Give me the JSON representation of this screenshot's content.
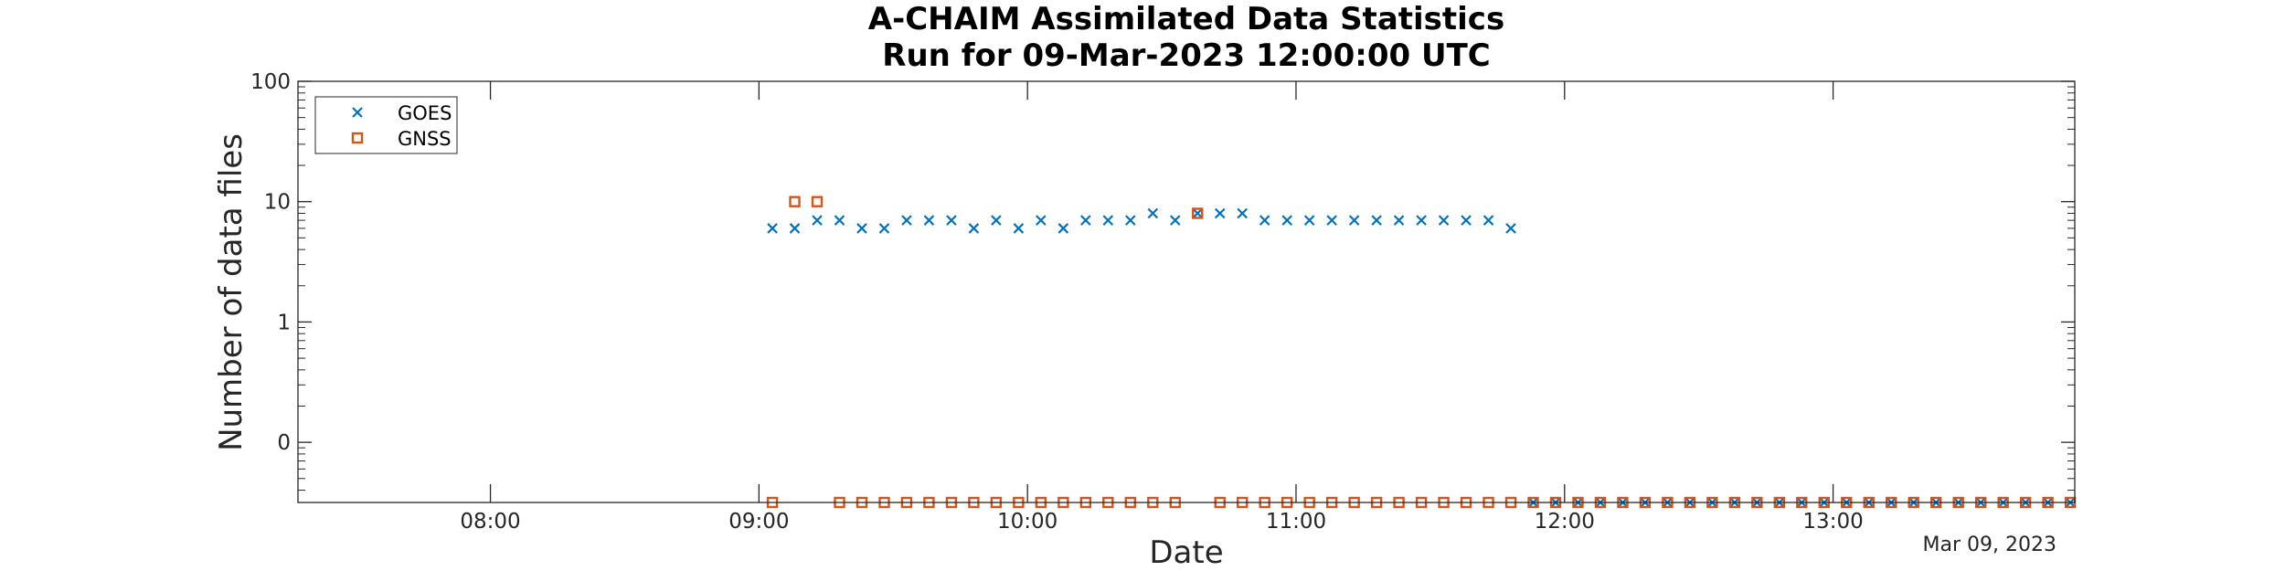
{
  "chart_data": {
    "type": "scatter",
    "title_lines": [
      "A-CHAIM Assimilated Data Statistics",
      "Run for 09-Mar-2023 12:00:00 UTC"
    ],
    "xlabel": "Date",
    "ylabel": "Number of data files",
    "x_tick_labels": [
      "08:00",
      "09:00",
      "10:00",
      "11:00",
      "12:00",
      "13:00"
    ],
    "x_tick_hours": [
      8,
      9,
      10,
      11,
      12,
      13
    ],
    "x_range_hours": [
      7.2833,
      13.9
    ],
    "y_scale": "log",
    "y_tick_labels": [
      "0",
      "1",
      "10",
      "100"
    ],
    "y_tick_values": [
      0.1,
      1,
      10,
      100
    ],
    "y_range": [
      0.03162,
      100
    ],
    "date_annotation": "Mar 09, 2023",
    "legend_position": "top-left",
    "grid": false,
    "series": [
      {
        "name": "GOES",
        "marker": "x",
        "color": "#0072BD",
        "x_hours": [
          9.05,
          9.1333,
          9.2167,
          9.3,
          9.3833,
          9.4667,
          9.55,
          9.6333,
          9.7167,
          9.8,
          9.8833,
          9.9667,
          10.05,
          10.1333,
          10.2167,
          10.3,
          10.3833,
          10.4667,
          10.55,
          10.6333,
          10.7167,
          10.8,
          10.8833,
          10.9667,
          11.05,
          11.1333,
          11.2167,
          11.3,
          11.3833,
          11.4667,
          11.55,
          11.6333,
          11.7167,
          11.8,
          11.8833,
          11.9667,
          12.05,
          12.1333,
          12.2167,
          12.3,
          12.3833,
          12.4667,
          12.55,
          12.6333,
          12.7167,
          12.8,
          12.8833,
          12.9667,
          13.05,
          13.1333,
          13.2167,
          13.3,
          13.3833,
          13.4667,
          13.55,
          13.6333,
          13.7167,
          13.8,
          13.8833
        ],
        "values": [
          6,
          6,
          7,
          7,
          6,
          6,
          7,
          7,
          7,
          6,
          7,
          6,
          7,
          6,
          7,
          7,
          7,
          8,
          7,
          8,
          8,
          8,
          7,
          7,
          7,
          7,
          7,
          7,
          7,
          7,
          7,
          7,
          7,
          6,
          0,
          0,
          0,
          0,
          0,
          0,
          0,
          0,
          0,
          0,
          0,
          0,
          0,
          0,
          0,
          0,
          0,
          0,
          0,
          0,
          0,
          0,
          0,
          0,
          0
        ]
      },
      {
        "name": "GNSS",
        "marker": "square",
        "color": "#D95319",
        "x_hours": [
          9.05,
          9.1333,
          9.2167,
          9.3,
          9.3833,
          9.4667,
          9.55,
          9.6333,
          9.7167,
          9.8,
          9.8833,
          9.9667,
          10.05,
          10.1333,
          10.2167,
          10.3,
          10.3833,
          10.4667,
          10.55,
          10.6333,
          10.7167,
          10.8,
          10.8833,
          10.9667,
          11.05,
          11.1333,
          11.2167,
          11.3,
          11.3833,
          11.4667,
          11.55,
          11.6333,
          11.7167,
          11.8,
          11.8833,
          11.9667,
          12.05,
          12.1333,
          12.2167,
          12.3,
          12.3833,
          12.4667,
          12.55,
          12.6333,
          12.7167,
          12.8,
          12.8833,
          12.9667,
          13.05,
          13.1333,
          13.2167,
          13.3,
          13.3833,
          13.4667,
          13.55,
          13.6333,
          13.7167,
          13.8,
          13.8833
        ],
        "values": [
          0,
          10,
          10,
          0,
          0,
          0,
          0,
          0,
          0,
          0,
          0,
          0,
          0,
          0,
          0,
          0,
          0,
          0,
          0,
          8,
          0,
          0,
          0,
          0,
          0,
          0,
          0,
          0,
          0,
          0,
          0,
          0,
          0,
          0,
          0,
          0,
          0,
          0,
          0,
          0,
          0,
          0,
          0,
          0,
          0,
          0,
          0,
          0,
          0,
          0,
          0,
          0,
          0,
          0,
          0,
          0,
          0,
          0,
          0
        ]
      }
    ]
  }
}
